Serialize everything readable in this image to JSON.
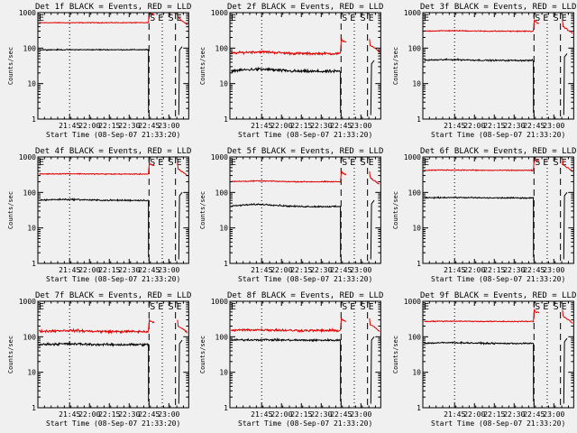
{
  "chart_data": {
    "type": "line",
    "rows": 3,
    "cols": 3,
    "x_ticks": [
      [
        "21:45",
        "22:00",
        "22:15",
        "22:30",
        "22:45",
        "23:00"
      ],
      [
        "21:45",
        "22:00",
        "22:15",
        "22:30",
        "22:45",
        "23:00"
      ],
      [
        "21:45",
        "22:00",
        "22:15",
        "22:30",
        "22:45",
        "23:00"
      ],
      [
        "21:45",
        "22:00",
        "22:15",
        "22:30",
        "22:45",
        "23:00"
      ],
      [
        "21:45",
        "22:00",
        "22:15",
        "22:30",
        "22:45",
        "23:00"
      ],
      [
        "21:45",
        "22:00",
        "22:15",
        "22:30",
        "22:45",
        "23:00"
      ],
      [
        "21:45",
        "22:00",
        "22:15",
        "22:30",
        "22:45",
        "23:00"
      ],
      [
        "21:45",
        "22:00",
        "22:15",
        "22:30",
        "22:45",
        "23:00"
      ],
      [
        "21:45",
        "22:00",
        "22:15",
        "22:30",
        "22:45",
        "23:00"
      ]
    ],
    "x_range_minutes": [
      -12,
      102
    ],
    "x_tick_minutes": [
      12,
      27,
      42,
      57,
      72,
      87
    ],
    "y_scale": "log",
    "y_range": [
      1,
      1000
    ],
    "y_tick_labels": [
      "1",
      "10",
      "100",
      "1000"
    ],
    "y_tick_values": [
      1,
      10,
      100,
      1000
    ],
    "ylabel": "Counts/sec",
    "xlabel": "Start Time (08-Sep-07 21:33:20)",
    "annotation_labels": [
      "S",
      "E",
      "S",
      "E"
    ],
    "vertical_markers": [
      {
        "t": 12,
        "style": "dotted"
      },
      {
        "t": 72,
        "style": "dashed"
      },
      {
        "t": 82,
        "style": "dotted"
      },
      {
        "t": 92,
        "style": "dashed"
      }
    ],
    "series_colors": {
      "events": "#000000",
      "lld": "#e00000"
    },
    "panels": [
      {
        "title": "Det 1f BLACK = Events, RED = LLD",
        "events_level": 90,
        "lld_level": 520,
        "events_noise": 0.02,
        "lld_noise": 0.015,
        "events_hump": 0.0,
        "lld_hump": 0.0,
        "events_dropout_gap": true,
        "events_after": 110,
        "lld_after": 700
      },
      {
        "title": "Det 2f BLACK = Events, RED = LLD",
        "events_level": 22,
        "lld_level": 70,
        "events_noise": 0.06,
        "lld_noise": 0.05,
        "events_hump": 0.15,
        "lld_hump": 0.12,
        "events_dropout_gap": true,
        "events_after": 45,
        "lld_after": 120
      },
      {
        "title": "Det 3f BLACK = Events, RED = LLD",
        "events_level": 45,
        "lld_level": 300,
        "events_noise": 0.03,
        "lld_noise": 0.02,
        "events_hump": 0.05,
        "lld_hump": 0.03,
        "events_dropout_gap": true,
        "events_after": 70,
        "lld_after": 400
      },
      {
        "title": "Det 4f BLACK = Events, RED = LLD",
        "events_level": 60,
        "lld_level": 330,
        "events_noise": 0.03,
        "lld_noise": 0.02,
        "events_hump": 0.06,
        "lld_hump": 0.02,
        "events_dropout_gap": true,
        "events_after": 100,
        "lld_after": 450
      },
      {
        "title": "Det 5f BLACK = Events, RED = LLD",
        "events_level": 40,
        "lld_level": 200,
        "events_noise": 0.03,
        "lld_noise": 0.02,
        "events_hump": 0.15,
        "lld_hump": 0.05,
        "events_dropout_gap": true,
        "events_after": 60,
        "lld_after": 260
      },
      {
        "title": "Det 6f BLACK = Events, RED = LLD",
        "events_level": 70,
        "lld_level": 420,
        "events_noise": 0.025,
        "lld_noise": 0.02,
        "events_hump": 0.03,
        "lld_hump": 0.02,
        "events_dropout_gap": true,
        "events_after": 100,
        "lld_after": 600
      },
      {
        "title": "Det 7f BLACK = Events, RED = LLD",
        "events_level": 60,
        "lld_level": 140,
        "events_noise": 0.05,
        "lld_noise": 0.05,
        "events_hump": 0.05,
        "lld_hump": 0.07,
        "events_dropout_gap": true,
        "events_after": 80,
        "lld_after": 200
      },
      {
        "title": "Det 8f BLACK = Events, RED = LLD",
        "events_level": 80,
        "lld_level": 150,
        "events_noise": 0.04,
        "lld_noise": 0.05,
        "events_hump": 0.03,
        "lld_hump": 0.05,
        "events_dropout_gap": true,
        "events_after": 100,
        "lld_after": 220
      },
      {
        "title": "Det 9f BLACK = Events, RED = LLD",
        "events_level": 65,
        "lld_level": 270,
        "events_noise": 0.03,
        "lld_noise": 0.02,
        "events_hump": 0.05,
        "lld_hump": 0.02,
        "events_dropout_gap": true,
        "events_after": 90,
        "lld_after": 380
      }
    ]
  }
}
